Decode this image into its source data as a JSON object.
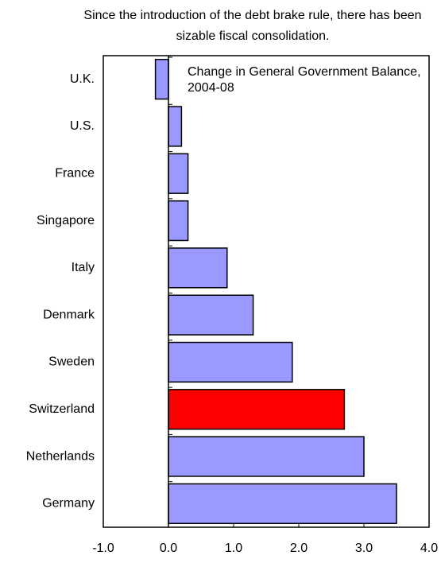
{
  "chart_data": {
    "type": "hbar",
    "title": "Since the introduction of the debt brake rule, there has been sizable fiscal consolidation.",
    "annotation": "Change in General Government Balance, 2004-08",
    "categories": [
      "U.K.",
      "U.S.",
      "France",
      "Singapore",
      "Italy",
      "Denmark",
      "Sweden",
      "Switzerland",
      "Netherlands",
      "Germany"
    ],
    "values": [
      -0.2,
      0.2,
      0.3,
      0.3,
      0.9,
      1.3,
      1.9,
      2.7,
      3.0,
      3.5
    ],
    "colors": [
      "#9999ff",
      "#9999ff",
      "#9999ff",
      "#9999ff",
      "#9999ff",
      "#9999ff",
      "#9999ff",
      "#ff0000",
      "#9999ff",
      "#9999ff"
    ],
    "xlim": [
      -1,
      4
    ],
    "xticks": [
      {
        "value": -1,
        "label": "-1.0"
      },
      {
        "value": 0,
        "label": "0.0"
      },
      {
        "value": 1,
        "label": "1.0"
      },
      {
        "value": 2,
        "label": "2.0"
      },
      {
        "value": 3,
        "label": "3.0"
      },
      {
        "value": 4,
        "label": "4.0"
      }
    ]
  }
}
